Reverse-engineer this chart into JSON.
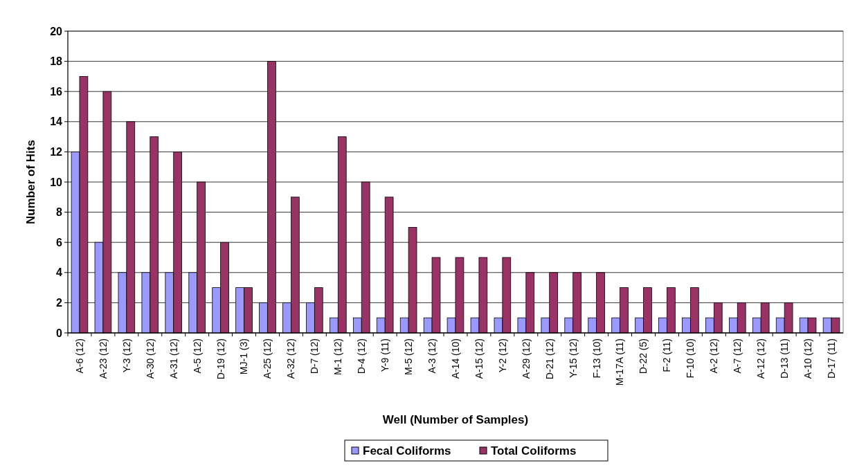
{
  "chart_data": {
    "type": "bar",
    "xlabel": "Well (Number of Samples)",
    "ylabel": "Number of Hits",
    "categories": [
      "A-6 (12)",
      "A-23 (12)",
      "Y-3 (12)",
      "A-30 (12)",
      "A-31 (12)",
      "A-5 (12)",
      "D-19 (12)",
      "MJ-1 (3)",
      "A-25 (12)",
      "A-32 (12)",
      "D-7 (12)",
      "M-1 (12)",
      "D-4 (12)",
      "Y-9 (11)",
      "M-5 (12)",
      "A-3 (12)",
      "A-14 (10)",
      "A-15 (12)",
      "Y-2 (12)",
      "A-29 (12)",
      "D-21 (12)",
      "Y-15 (12)",
      "F-13 (10)",
      "M-17A (11)",
      "D-22 (5)",
      "F-2 (11)",
      "F-10 (10)",
      "A-2 (12)",
      "A-7 (12)",
      "A-12 (12)",
      "D-13 (11)",
      "A-10 (12)",
      "D-17 (11)"
    ],
    "series": [
      {
        "name": "Fecal Coliforms",
        "color": "#9999ff",
        "values": [
          12,
          6,
          4,
          4,
          4,
          4,
          3,
          3,
          2,
          2,
          2,
          1,
          1,
          1,
          1,
          1,
          1,
          1,
          1,
          1,
          1,
          1,
          1,
          1,
          1,
          1,
          1,
          1,
          1,
          1,
          1,
          1,
          1
        ]
      },
      {
        "name": "Total Coliforms",
        "color": "#993366",
        "values": [
          17,
          16,
          14,
          13,
          12,
          10,
          6,
          3,
          18,
          9,
          3,
          13,
          10,
          9,
          7,
          5,
          5,
          5,
          5,
          4,
          4,
          4,
          4,
          3,
          3,
          3,
          3,
          2,
          2,
          2,
          2,
          1,
          1
        ]
      }
    ],
    "ylim": [
      0,
      20
    ],
    "yticks": [
      0,
      2,
      4,
      6,
      8,
      10,
      12,
      14,
      16,
      18,
      20
    ],
    "grid": "y",
    "legend": "bottom"
  }
}
